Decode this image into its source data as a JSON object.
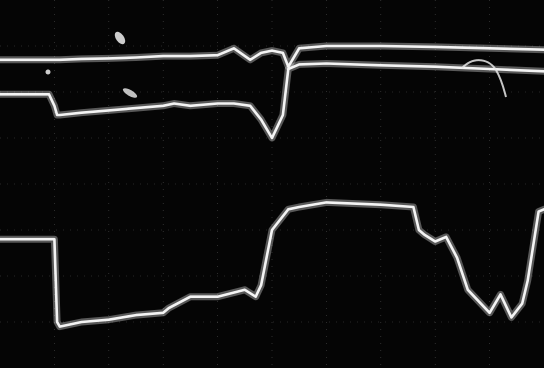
{
  "chart_data": {
    "type": "line",
    "title": "",
    "xlabel": "",
    "ylabel": "",
    "xlim": [
      0,
      10
    ],
    "ylim": [
      0,
      8
    ],
    "grid": true,
    "legend": "none",
    "colors": {
      "background": "#050505",
      "trace": "#f4f4f4",
      "graticule": "#8a8a8a"
    },
    "series": [
      {
        "x": [
          0.0,
          0.9,
          1.0,
          1.05,
          1.1,
          1.5,
          2.0,
          2.5,
          3.0,
          3.2,
          3.5,
          4.0,
          4.3,
          4.6,
          4.8,
          5.0,
          5.2,
          5.3,
          5.5,
          6.0,
          7.0,
          8.0,
          9.0,
          10.0
        ],
        "y": [
          6.7,
          6.7,
          6.7,
          6.7,
          6.7,
          6.72,
          6.73,
          6.75,
          6.78,
          6.78,
          6.78,
          6.8,
          6.95,
          6.7,
          6.85,
          6.9,
          6.85,
          6.55,
          6.95,
          7.0,
          7.0,
          6.98,
          6.95,
          6.92
        ]
      },
      {
        "x": [
          0.0,
          0.9,
          1.0,
          1.05,
          1.1,
          1.5,
          2.0,
          2.5,
          3.0,
          3.2,
          3.5,
          4.0,
          4.3,
          4.6,
          4.8,
          5.0,
          5.2,
          5.3,
          5.5,
          6.0,
          7.0,
          8.0,
          9.0,
          10.0
        ],
        "y": [
          5.95,
          5.95,
          5.7,
          5.5,
          5.5,
          5.55,
          5.6,
          5.65,
          5.7,
          5.75,
          5.7,
          5.75,
          5.75,
          5.7,
          5.4,
          5.0,
          5.5,
          6.5,
          6.6,
          6.62,
          6.58,
          6.55,
          6.5,
          6.45
        ]
      },
      {
        "x": [
          0.0,
          0.9,
          1.0,
          1.05,
          1.1,
          1.5,
          2.0,
          2.5,
          3.0,
          3.1,
          3.5,
          4.0,
          4.5,
          4.7,
          4.8,
          5.0,
          5.3,
          5.5,
          6.0,
          7.0,
          7.6,
          7.7,
          7.8,
          8.0,
          8.2,
          8.4,
          8.6,
          8.8,
          9.0,
          9.2,
          9.4,
          9.6,
          9.7,
          9.9,
          10.0
        ],
        "y": [
          2.8,
          2.8,
          2.8,
          1.0,
          0.9,
          1.0,
          1.05,
          1.15,
          1.2,
          1.3,
          1.55,
          1.55,
          1.7,
          1.55,
          1.8,
          3.0,
          3.45,
          3.5,
          3.6,
          3.55,
          3.5,
          3.0,
          2.9,
          2.75,
          2.85,
          2.4,
          1.7,
          1.45,
          1.2,
          1.6,
          1.1,
          1.4,
          1.9,
          3.4,
          3.45
        ]
      }
    ]
  }
}
